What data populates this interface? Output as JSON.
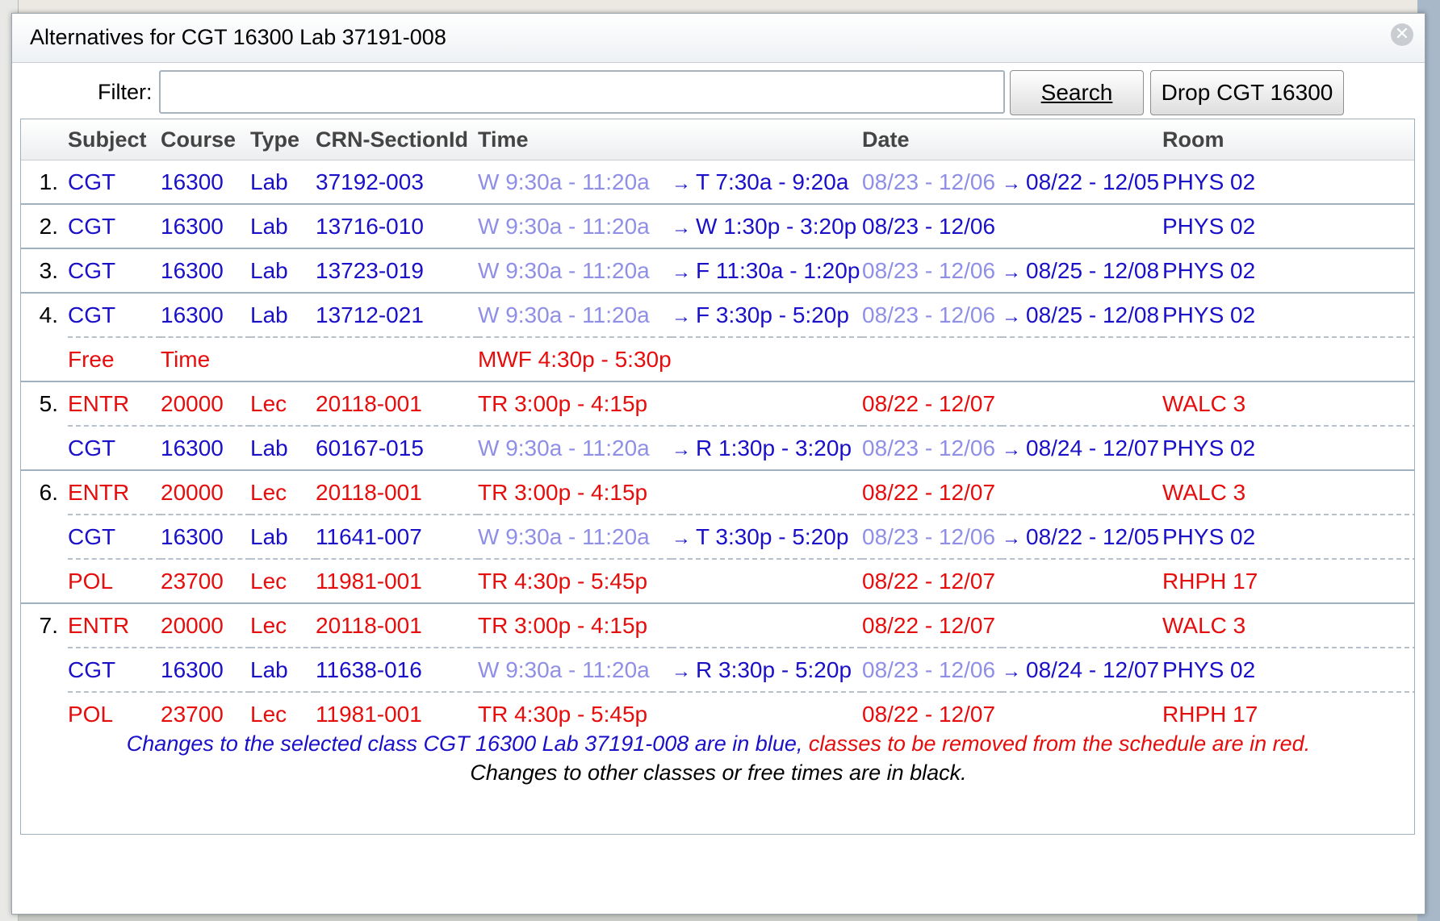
{
  "dialog": {
    "title": "Alternatives for CGT 16300 Lab 37191-008",
    "close_symbol": "✕"
  },
  "filter": {
    "label": "Filter:",
    "value": ""
  },
  "buttons": {
    "search": "Search",
    "drop": "Drop CGT 16300"
  },
  "columns": {
    "subject": "Subject",
    "course": "Course",
    "type": "Type",
    "crn": "CRN-SectionId",
    "time": "Time",
    "date": "Date",
    "room": "Room"
  },
  "rows": [
    {
      "group": "1.",
      "subject": "CGT",
      "course": "16300",
      "type": "Lab",
      "crn": "37192-003",
      "time": "W 9:30a - 11:20a",
      "time_new": "T 7:30a - 9:20a",
      "date": "08/23 - 12/06",
      "date_new": "08/22 - 12/05",
      "room": "PHYS 02"
    },
    {
      "group": "2.",
      "subject": "CGT",
      "course": "16300",
      "type": "Lab",
      "crn": "13716-010",
      "time": "W 9:30a - 11:20a",
      "time_new": "W 1:30p - 3:20p",
      "date": "08/23 - 12/06",
      "date_new": "",
      "room": "PHYS 02"
    },
    {
      "group": "3.",
      "subject": "CGT",
      "course": "16300",
      "type": "Lab",
      "crn": "13723-019",
      "time": "W 9:30a - 11:20a",
      "time_new": "F 11:30a - 1:20p",
      "date": "08/23 - 12/06",
      "date_new": "08/25 - 12/08",
      "room": "PHYS 02"
    },
    {
      "group": "4.",
      "subject": "CGT",
      "course": "16300",
      "type": "Lab",
      "crn": "13712-021",
      "time": "W 9:30a - 11:20a",
      "time_new": "F 3:30p - 5:20p",
      "date": "08/23 - 12/06",
      "date_new": "08/25 - 12/08",
      "room": "PHYS 02"
    },
    {
      "group": "",
      "subject": "Free",
      "course": "Time",
      "type": "",
      "crn": "",
      "time": "MWF 4:30p - 5:30p",
      "time_new": "",
      "date": "",
      "date_new": "",
      "room": ""
    },
    {
      "group": "5.",
      "subject": "ENTR",
      "course": "20000",
      "type": "Lec",
      "crn": "20118-001",
      "time": "TR 3:00p - 4:15p",
      "time_new": "",
      "date": "08/22 - 12/07",
      "date_new": "",
      "room": "WALC 3"
    },
    {
      "group": "",
      "subject": "CGT",
      "course": "16300",
      "type": "Lab",
      "crn": "60167-015",
      "time": "W 9:30a - 11:20a",
      "time_new": "R 1:30p - 3:20p",
      "date": "08/23 - 12/06",
      "date_new": "08/24 - 12/07",
      "room": "PHYS 02"
    },
    {
      "group": "6.",
      "subject": "ENTR",
      "course": "20000",
      "type": "Lec",
      "crn": "20118-001",
      "time": "TR 3:00p - 4:15p",
      "time_new": "",
      "date": "08/22 - 12/07",
      "date_new": "",
      "room": "WALC 3"
    },
    {
      "group": "",
      "subject": "CGT",
      "course": "16300",
      "type": "Lab",
      "crn": "11641-007",
      "time": "W 9:30a - 11:20a",
      "time_new": "T 3:30p - 5:20p",
      "date": "08/23 - 12/06",
      "date_new": "08/22 - 12/05",
      "room": "PHYS 02"
    },
    {
      "group": "",
      "subject": "POL",
      "course": "23700",
      "type": "Lec",
      "crn": "11981-001",
      "time": "TR 4:30p - 5:45p",
      "time_new": "",
      "date": "08/22 - 12/07",
      "date_new": "",
      "room": "RHPH 17"
    },
    {
      "group": "7.",
      "subject": "ENTR",
      "course": "20000",
      "type": "Lec",
      "crn": "20118-001",
      "time": "TR 3:00p - 4:15p",
      "time_new": "",
      "date": "08/22 - 12/07",
      "date_new": "",
      "room": "WALC 3"
    },
    {
      "group": "",
      "subject": "CGT",
      "course": "16300",
      "type": "Lab",
      "crn": "11638-016",
      "time": "W 9:30a - 11:20a",
      "time_new": "R 3:30p - 5:20p",
      "date": "08/23 - 12/06",
      "date_new": "08/24 - 12/07",
      "room": "PHYS 02"
    },
    {
      "group": "",
      "subject": "POL",
      "course": "23700",
      "type": "Lec",
      "crn": "11981-001",
      "time": "TR 4:30p - 5:45p",
      "time_new": "",
      "date": "08/22 - 12/07",
      "date_new": "",
      "room": "RHPH 17"
    }
  ],
  "arrow": "→",
  "legend": {
    "blue_text": "Changes to the selected class CGT 16300 Lab 37191-008 are in blue,",
    "red_text": "classes to be removed from the schedule are in red.",
    "black_text": "Changes to other classes or free times are in black."
  },
  "colors": {
    "changed": "#1a10c8",
    "removed": "#e60d0d",
    "unchanged_old": "#8f8fe6"
  }
}
